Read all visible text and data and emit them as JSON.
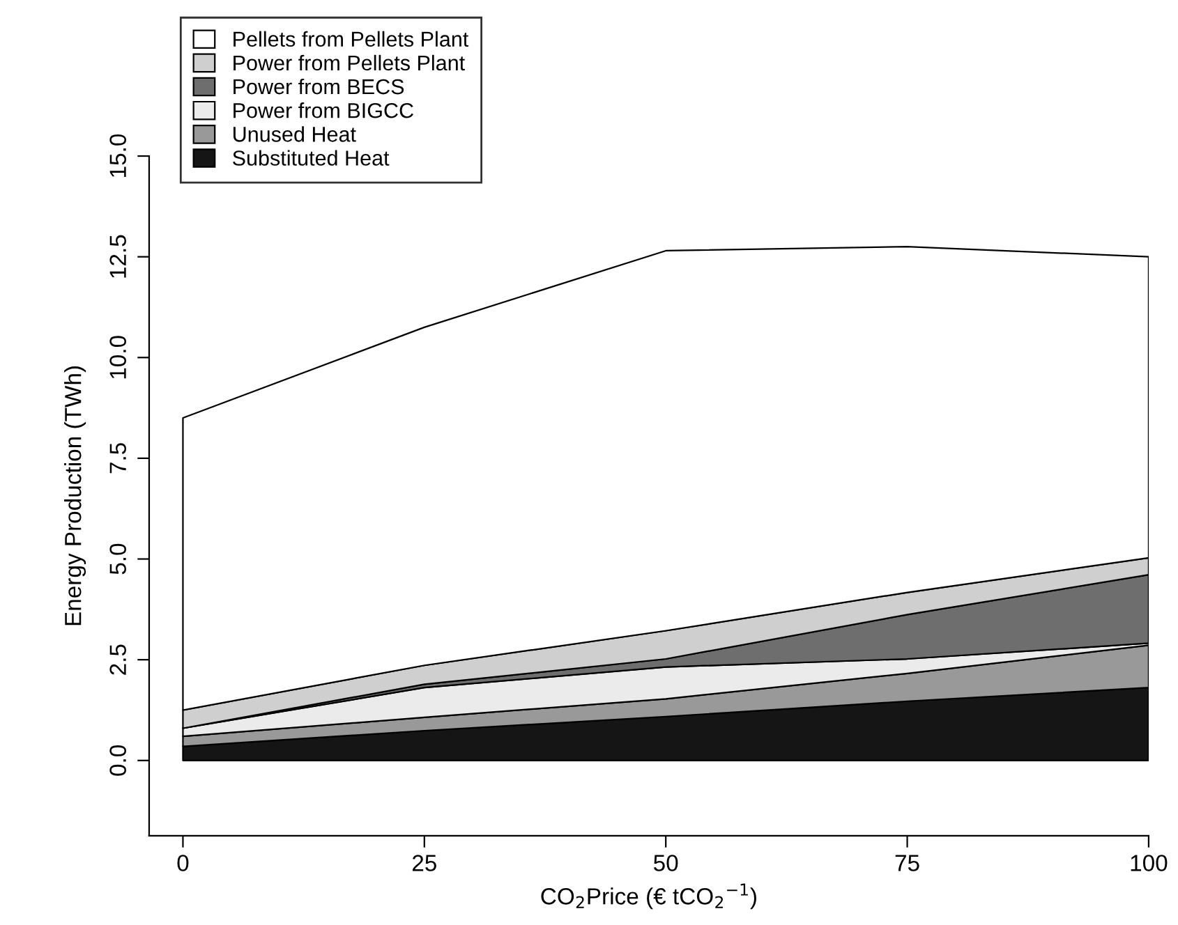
{
  "chart_data": {
    "type": "area",
    "stacked": true,
    "xlabel": "CO$_{2}$Price (€ tCO$_{2}$$^{−1}$)",
    "ylabel": "Energy Production (TWh)",
    "x": [
      0,
      25,
      50,
      75,
      100
    ],
    "series": [
      {
        "name": "Substituted Heat",
        "color": "#151515",
        "values": [
          0.35,
          0.74,
          1.09,
          1.47,
          1.81
        ]
      },
      {
        "name": "Unused Heat",
        "color": "#999999",
        "values": [
          0.25,
          0.33,
          0.44,
          0.69,
          1.05
        ]
      },
      {
        "name": "Power from BIGCC",
        "color": "#ebebeb",
        "values": [
          0.2,
          0.74,
          0.79,
          0.36,
          0.05
        ]
      },
      {
        "name": "Power from BECS",
        "color": "#6e6e6e",
        "values": [
          0,
          0.08,
          0.2,
          1.1,
          1.7
        ]
      },
      {
        "name": "Power from Pellets Plant",
        "color": "#cfcfcf",
        "values": [
          0.45,
          0.47,
          0.7,
          0.55,
          0.42
        ]
      },
      {
        "name": "Pellets from Pellets Plant",
        "color": "#ffffff",
        "values": [
          7.25,
          8.39,
          9.43,
          8.58,
          7.47
        ]
      }
    ],
    "xlim": [
      -3.5,
      100
    ],
    "ylim": [
      -1.87,
      15
    ],
    "xticks": [
      0,
      25,
      50,
      75,
      100
    ],
    "yticks": [
      {
        "value": 0,
        "label": "0.0"
      },
      2.5,
      {
        "value": 5,
        "label": "5.0"
      },
      7.5,
      {
        "value": 10,
        "label": "10.0"
      },
      12.5,
      {
        "value": 15,
        "label": "15.0"
      }
    ],
    "grid": false,
    "legend": "top left"
  }
}
